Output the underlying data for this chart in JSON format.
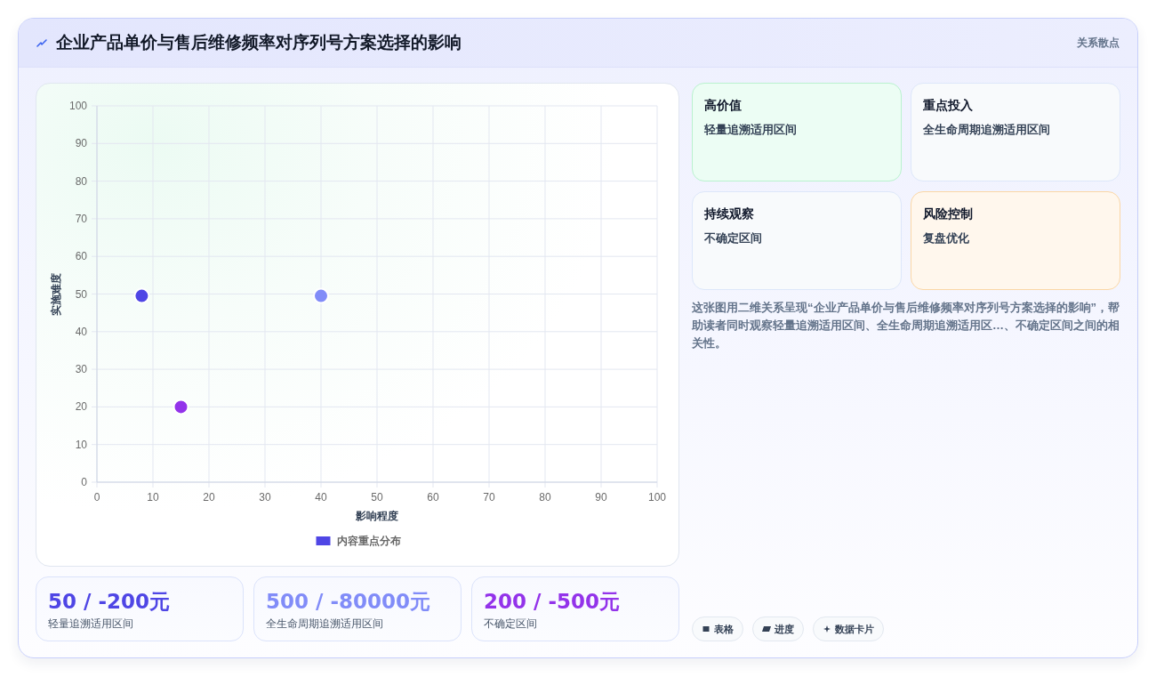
{
  "chart_data": [
    {
      "type": "other",
      "title": "企业产品单价与售后维修频率对序列号方案选择的影响",
      "subtitle": "关系散点"
    },
    {
      "type": "scatter",
      "xlabel": "影响程度",
      "ylabel": "实施难度",
      "x": [
        8,
        40,
        15
      ],
      "series": [
        {
          "name": "内容重点分布",
          "colors": [
            "#4f46e5",
            "#818cf8",
            "#9333ea"
          ],
          "values": [
            49.5,
            49.5,
            20
          ]
        }
      ],
      "xlim": [
        0,
        100
      ],
      "ylim": [
        0,
        100
      ],
      "xticks": [
        0,
        10,
        20,
        30,
        40,
        50,
        60,
        70,
        80,
        90,
        100
      ],
      "yticks": [
        0,
        10,
        20,
        30,
        40,
        50,
        60,
        70,
        80,
        90,
        100
      ],
      "grid": true,
      "legend": "bottom",
      "marker": "circle"
    },
    {
      "type": "other",
      "title": "高价值",
      "annotations": [
        "轻量追溯适用区间"
      ]
    },
    {
      "type": "other",
      "title": "重点投入",
      "annotations": [
        "全生命周期追溯适用区间"
      ]
    },
    {
      "type": "other",
      "title": "持续观察",
      "annotations": [
        "不确定区间"
      ]
    },
    {
      "type": "other",
      "title": "风险控制",
      "annotations": [
        "复盘优化"
      ]
    },
    {
      "type": "other",
      "annotations": [
        "这张图用二维关系呈现“企业产品单价与售后维修频率对序列号方案选择的影响”，帮助读者同时观察轻量追溯适用区间、全生命周期追溯适用区…、不确定区间之间的相关性。"
      ]
    },
    {
      "type": "other",
      "title": "50 / -200元",
      "annotations": [
        "轻量追溯适用区间"
      ],
      "color": "#4f46e5"
    },
    {
      "type": "other",
      "title": "500 / -80000元",
      "annotations": [
        "全生命周期追溯适用区间"
      ],
      "color": "#818cf8"
    },
    {
      "type": "other",
      "title": "200 / -500元",
      "annotations": [
        "不确定区间"
      ],
      "color": "#9333ea"
    },
    {
      "type": "other",
      "annotations": [
        "表格",
        "进度",
        "数据卡片"
      ]
    }
  ]
}
